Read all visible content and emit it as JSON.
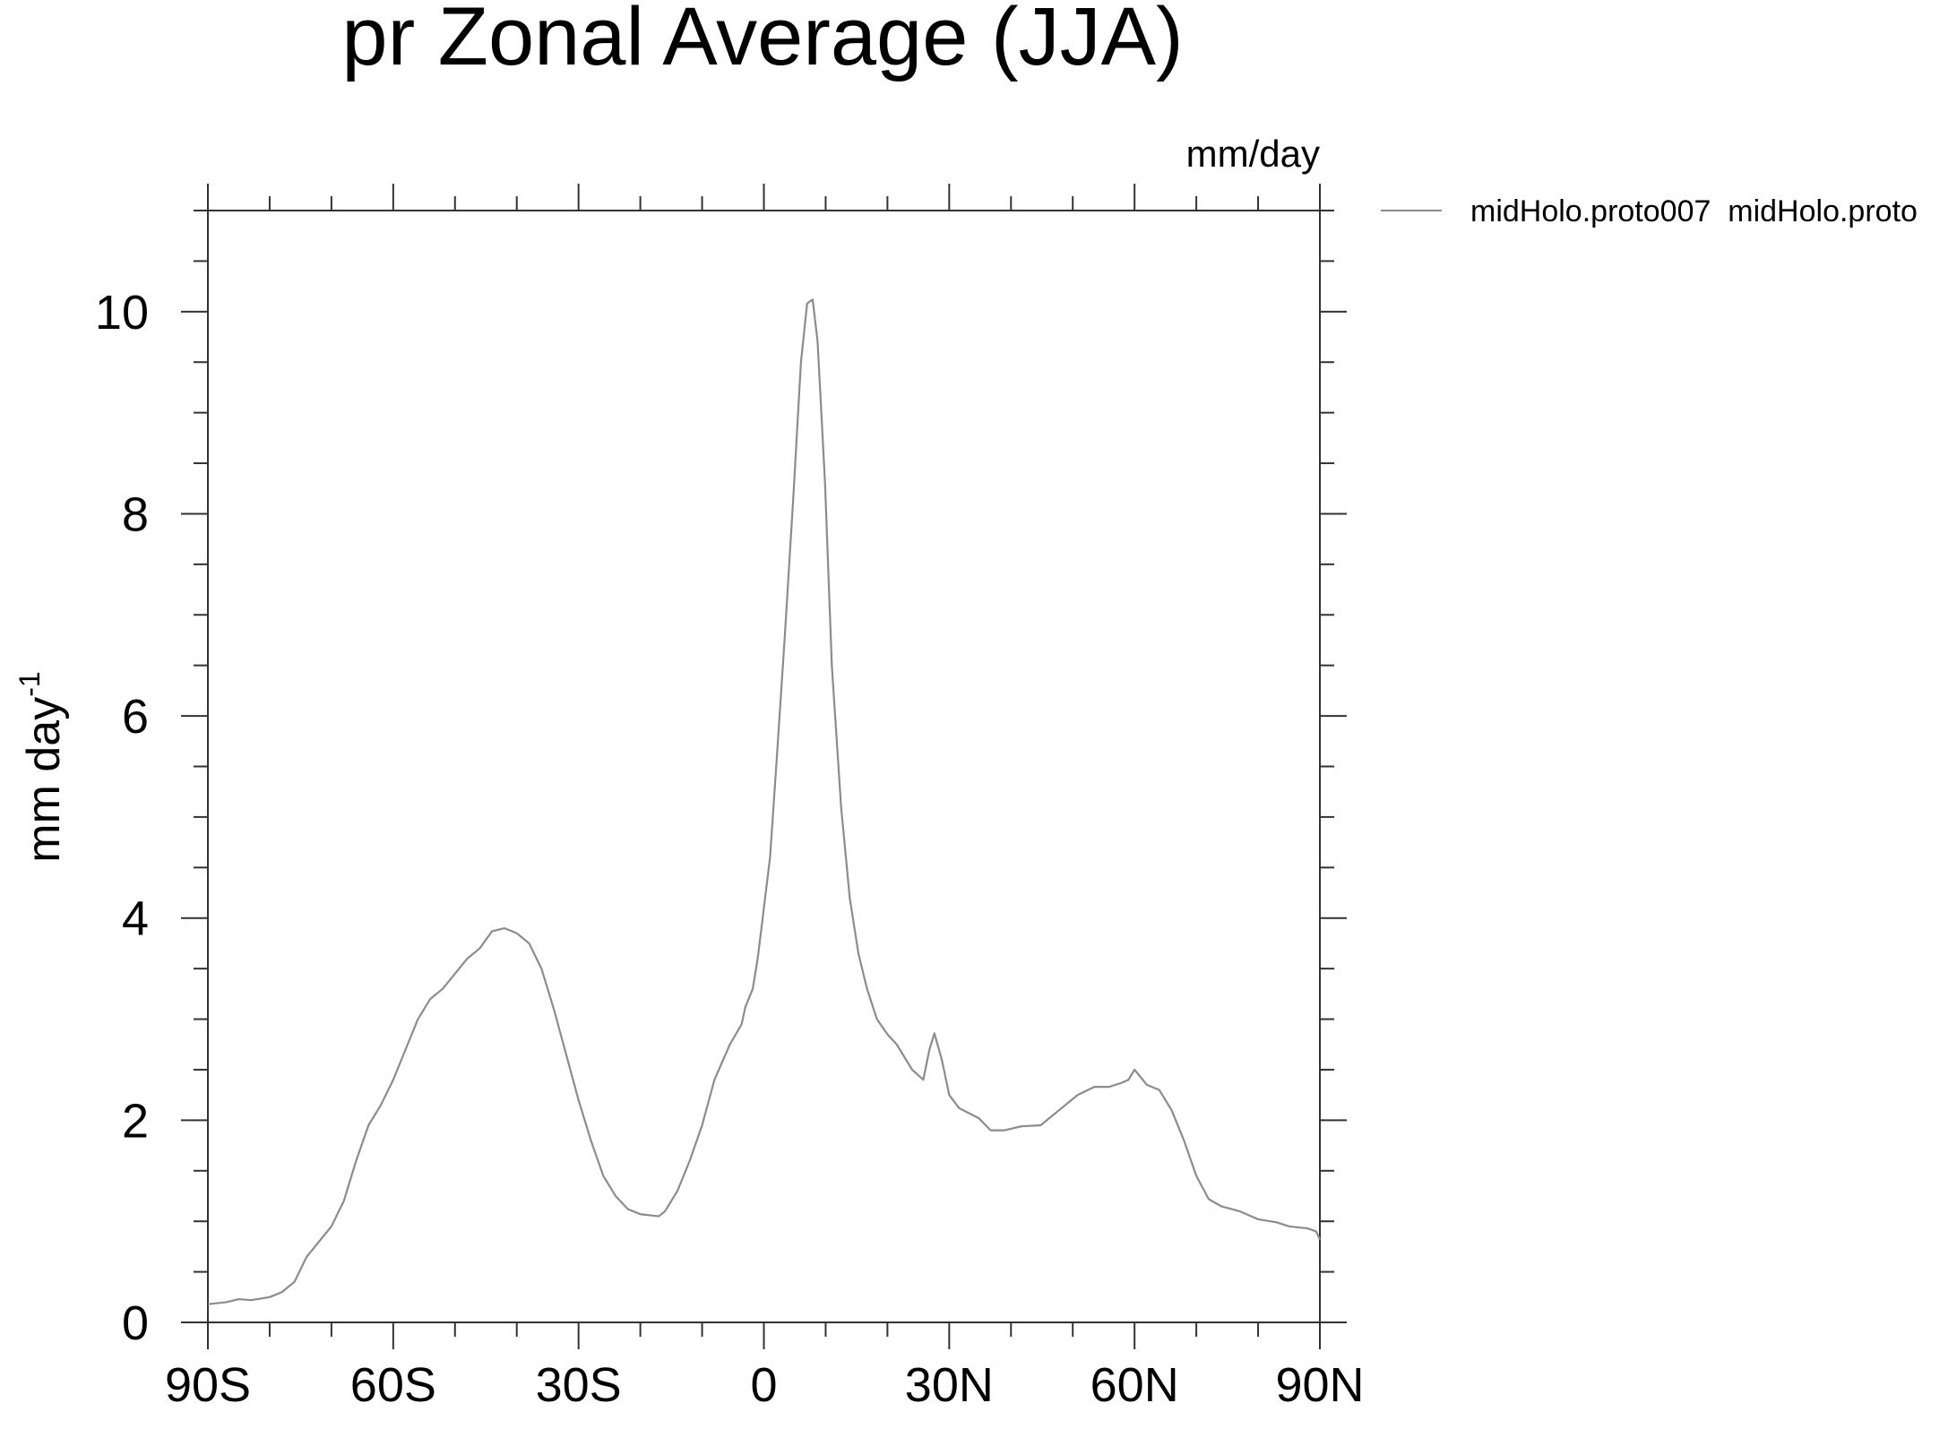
{
  "chart_data": {
    "type": "line",
    "title": "pr Zonal Average (JJA)",
    "units": "mm/day",
    "ylabel": "mm day",
    "ylabel_sup": "-1",
    "legend_position": "top-right",
    "x": [
      -90,
      -87,
      -85,
      -83,
      -80,
      -78,
      -76,
      -74,
      -72,
      -70,
      -68,
      -66,
      -64,
      -62,
      -60,
      -58,
      -56,
      -54,
      -52,
      -50,
      -48,
      -46,
      -44,
      -42,
      -40,
      -38,
      -36,
      -34,
      -32,
      -30,
      -28,
      -26,
      -24,
      -22,
      -20,
      -17,
      -16,
      -14,
      -12,
      -10,
      -8,
      -5.5,
      -3.6,
      -3,
      -1.8,
      -1,
      -0.2,
      1,
      2,
      3.4,
      4.8,
      6,
      7,
      7.9,
      8.7,
      9.9,
      11,
      12.5,
      13.9,
      15.3,
      16.7,
      18.3,
      20,
      21.5,
      24,
      25.8,
      26.8,
      27.6,
      28.8,
      30,
      31.6,
      33.2,
      34.8,
      36.7,
      38.9,
      41.7,
      44.8,
      47.8,
      50.8,
      53.5,
      55.9,
      57.9,
      59,
      60,
      62,
      64,
      66,
      68,
      70,
      72,
      74,
      77,
      80,
      83,
      85,
      88,
      89.4,
      90
    ],
    "series": [
      {
        "name": "midHolo.proto007  midHolo.proto",
        "color": "#8c8c8c",
        "values": [
          0.18,
          0.2,
          0.23,
          0.22,
          0.25,
          0.3,
          0.4,
          0.65,
          0.8,
          0.95,
          1.2,
          1.6,
          1.95,
          2.15,
          2.4,
          2.7,
          3.0,
          3.2,
          3.3,
          3.45,
          3.6,
          3.7,
          3.87,
          3.9,
          3.85,
          3.75,
          3.5,
          3.1,
          2.65,
          2.2,
          1.8,
          1.45,
          1.25,
          1.12,
          1.07,
          1.05,
          1.1,
          1.3,
          1.6,
          1.95,
          2.4,
          2.75,
          2.95,
          3.12,
          3.3,
          3.6,
          4.0,
          4.6,
          5.5,
          6.8,
          8.2,
          9.5,
          10.08,
          10.12,
          9.7,
          8.3,
          6.5,
          5.1,
          4.2,
          3.65,
          3.3,
          3.0,
          2.85,
          2.75,
          2.5,
          2.4,
          2.7,
          2.86,
          2.6,
          2.25,
          2.12,
          2.07,
          2.02,
          1.9,
          1.9,
          1.94,
          1.95,
          2.1,
          2.25,
          2.33,
          2.33,
          2.37,
          2.4,
          2.5,
          2.35,
          2.3,
          2.1,
          1.8,
          1.45,
          1.22,
          1.15,
          1.1,
          1.02,
          0.99,
          0.95,
          0.93,
          0.9,
          0.82
        ]
      }
    ],
    "xlim": [
      -90,
      90
    ],
    "xticks": [
      {
        "value": -90,
        "label": "90S"
      },
      {
        "value": -60,
        "label": "60S"
      },
      {
        "value": -30,
        "label": "30S"
      },
      0,
      {
        "value": 30,
        "label": "30N"
      },
      {
        "value": 60,
        "label": "60N"
      },
      {
        "value": 90,
        "label": "90N"
      }
    ],
    "xminorticks": [
      -80,
      -70,
      -50,
      -40,
      -20,
      -10,
      10,
      20,
      40,
      50,
      70,
      80
    ],
    "ylim": [
      0,
      11
    ],
    "yticks": [
      0,
      2,
      4,
      6,
      8,
      10
    ],
    "yminorticks": [
      0.5,
      1,
      1.5,
      2.5,
      3,
      3.5,
      4.5,
      5,
      5.5,
      6.5,
      7,
      7.5,
      8.5,
      9,
      9.5,
      10.5,
      11
    ]
  }
}
